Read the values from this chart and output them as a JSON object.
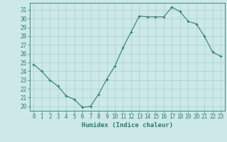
{
  "x": [
    0,
    1,
    2,
    3,
    4,
    5,
    6,
    7,
    8,
    9,
    10,
    11,
    12,
    13,
    14,
    15,
    16,
    17,
    18,
    19,
    20,
    21,
    22,
    23
  ],
  "y": [
    24.8,
    24.0,
    23.0,
    22.3,
    21.2,
    20.8,
    19.9,
    20.0,
    21.4,
    23.1,
    24.6,
    26.7,
    28.5,
    30.3,
    30.2,
    30.2,
    30.2,
    31.3,
    30.8,
    29.7,
    29.4,
    28.0,
    26.2,
    25.7
  ],
  "line_color": "#2e7d6e",
  "marker": "+",
  "bg_color": "#cce8e8",
  "grid_color": "#aad0d0",
  "xlabel": "Humidex (Indice chaleur)",
  "ylabel_ticks": [
    20,
    21,
    22,
    23,
    24,
    25,
    26,
    27,
    28,
    29,
    30,
    31
  ],
  "ylim": [
    19.5,
    31.8
  ],
  "xlim": [
    -0.5,
    23.5
  ],
  "tick_fontsize": 5.5,
  "xlabel_fontsize": 6.5
}
